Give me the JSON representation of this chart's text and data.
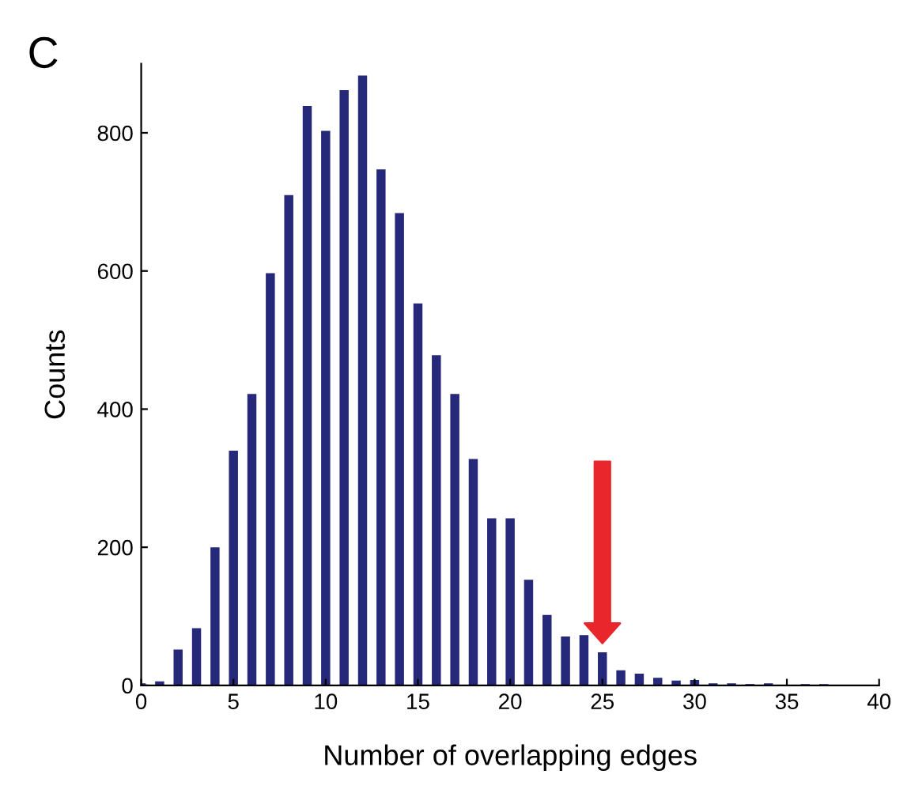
{
  "chart_data": {
    "type": "bar",
    "title": "C",
    "xlabel": "Number of overlapping edges",
    "ylabel": "Counts",
    "x": [
      0,
      1,
      2,
      3,
      4,
      5,
      6,
      7,
      8,
      9,
      10,
      11,
      12,
      13,
      14,
      15,
      16,
      17,
      18,
      19,
      20,
      21,
      22,
      23,
      24,
      25,
      26,
      27,
      28,
      29,
      30,
      31,
      32,
      33,
      34,
      35,
      36,
      37
    ],
    "values": [
      2,
      5,
      51,
      82,
      199,
      339,
      421,
      596,
      709,
      838,
      802,
      861,
      882,
      746,
      683,
      552,
      477,
      421,
      327,
      241,
      241,
      152,
      101,
      70,
      72,
      47,
      21,
      16,
      10,
      6,
      7,
      2,
      2,
      1,
      2,
      0,
      1,
      1
    ],
    "color": "#26287a",
    "xlim": [
      0,
      40
    ],
    "xticks": [
      0,
      5,
      10,
      15,
      20,
      25,
      30,
      35,
      40
    ],
    "ylim": [
      0,
      900
    ],
    "yticks": [
      0,
      200,
      400,
      600,
      800
    ],
    "grid": false,
    "legend": false
  }
}
